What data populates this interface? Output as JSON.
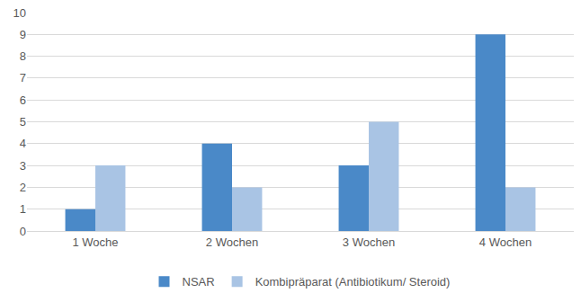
{
  "chart_data": {
    "type": "bar",
    "categories": [
      "1 Woche",
      "2 Wochen",
      "3 Wochen",
      "4 Wochen"
    ],
    "series": [
      {
        "name": "NSAR",
        "color": "#4a89c8",
        "values": [
          1,
          4,
          3,
          9
        ]
      },
      {
        "name": "Kombipräparat (Antibiotikum/ Steroid)",
        "color": "#a9c4e4",
        "values": [
          3,
          2,
          5,
          2
        ]
      }
    ],
    "ylim": [
      0,
      10
    ],
    "yticks": [
      0,
      1,
      2,
      3,
      4,
      5,
      6,
      7,
      8,
      9,
      10
    ],
    "grid": true,
    "legend": "bottom"
  }
}
